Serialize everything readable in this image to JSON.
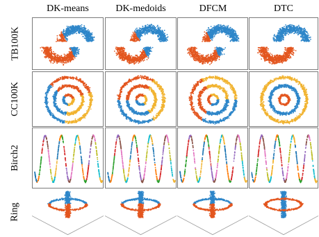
{
  "columns": [
    {
      "label": "DK-means"
    },
    {
      "label": "DK-medoids"
    },
    {
      "label": "DFCM"
    },
    {
      "label": "DTC"
    }
  ],
  "rows": [
    {
      "label": "TB100K"
    },
    {
      "label": "CC100K"
    },
    {
      "label": "Birch2"
    },
    {
      "label": "Ring"
    }
  ],
  "colors": {
    "blue": "#2e86c9",
    "orange": "#e3561f",
    "yellow": "#f1b330",
    "frame": "#7a7a7a",
    "wave_palette": [
      "#1f77b4",
      "#ff7f0e",
      "#2ca02c",
      "#d62728",
      "#9467bd",
      "#8c564b",
      "#e377c2",
      "#bcbd22",
      "#17becf",
      "#f1b330"
    ]
  }
}
